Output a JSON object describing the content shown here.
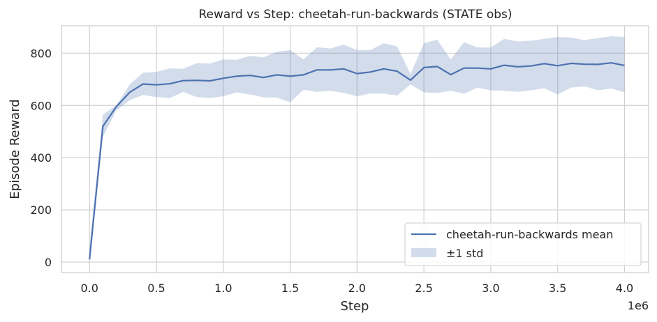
{
  "chart_data": {
    "type": "line",
    "title": "Reward vs Step: cheetah-run-backwards (STATE obs)",
    "xlabel": "Step",
    "ylabel": "Episode Reward",
    "x_offset_label": "1e6",
    "xlim": [
      -0.21,
      4.18
    ],
    "ylim": [
      -40,
      905
    ],
    "xticks": [
      0.0,
      0.5,
      1.0,
      1.5,
      2.0,
      2.5,
      3.0,
      3.5,
      4.0
    ],
    "xtick_labels": [
      "0.0",
      "0.5",
      "1.0",
      "1.5",
      "2.0",
      "2.5",
      "3.0",
      "3.5",
      "4.0"
    ],
    "yticks": [
      0,
      200,
      400,
      600,
      800
    ],
    "ytick_labels": [
      "0",
      "200",
      "400",
      "600",
      "800"
    ],
    "grid": true,
    "legend_position": "bottom-right",
    "colors": {
      "line": "#4c72b0",
      "band": "#4c72b0",
      "grid": "#d0d0d0",
      "background": "#ffffff"
    },
    "x": [
      0.0,
      0.1,
      0.2,
      0.3,
      0.4,
      0.5,
      0.6,
      0.7,
      0.8,
      0.9,
      1.0,
      1.1,
      1.2,
      1.3,
      1.4,
      1.5,
      1.6,
      1.7,
      1.8,
      1.9,
      2.0,
      2.1,
      2.2,
      2.3,
      2.4,
      2.5,
      2.6,
      2.7,
      2.8,
      2.9,
      3.0,
      3.1,
      3.2,
      3.3,
      3.4,
      3.5,
      3.6,
      3.7,
      3.8,
      3.9,
      4.0
    ],
    "series": [
      {
        "name": "cheetah-run-backwards mean",
        "values": [
          10,
          520,
          595,
          650,
          682,
          679,
          683,
          695,
          696,
          694,
          704,
          712,
          715,
          707,
          717,
          712,
          717,
          736,
          736,
          740,
          722,
          728,
          740,
          731,
          697,
          745,
          749,
          718,
          743,
          743,
          740,
          754,
          748,
          751,
          760,
          752,
          761,
          758,
          757,
          763,
          753
        ]
      }
    ],
    "band": {
      "name": "±1 std",
      "upper": [
        60,
        565,
        600,
        680,
        725,
        728,
        742,
        740,
        762,
        760,
        776,
        775,
        790,
        784,
        805,
        812,
        776,
        823,
        818,
        833,
        812,
        812,
        838,
        826,
        720,
        838,
        852,
        776,
        842,
        822,
        822,
        855,
        845,
        848,
        855,
        862,
        860,
        850,
        858,
        865,
        862
      ],
      "lower": [
        5,
        480,
        580,
        620,
        640,
        632,
        628,
        652,
        632,
        628,
        635,
        650,
        642,
        631,
        630,
        612,
        660,
        652,
        656,
        648,
        635,
        646,
        645,
        638,
        680,
        650,
        648,
        656,
        645,
        668,
        658,
        656,
        652,
        658,
        666,
        642,
        668,
        673,
        658,
        665,
        650
      ]
    }
  }
}
